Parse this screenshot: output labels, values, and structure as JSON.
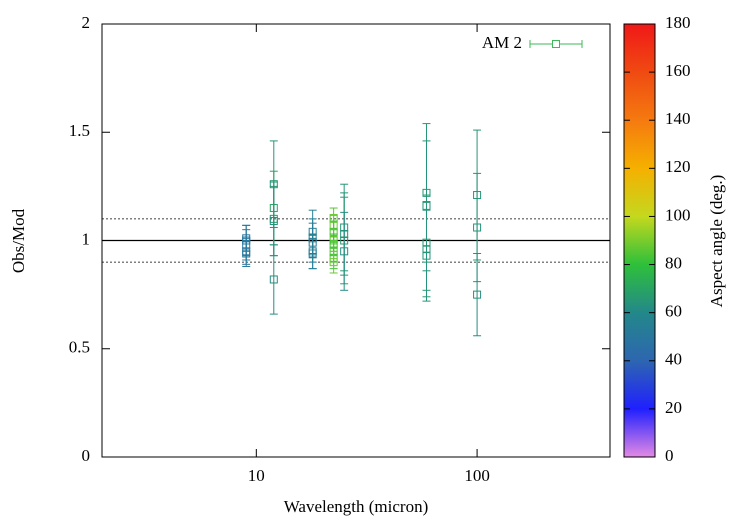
{
  "chart_data": {
    "type": "scatter",
    "xlabel": "Wavelength (micron)",
    "ylabel": "Obs/Mod",
    "xscale": "log",
    "xlim": [
      2,
      400
    ],
    "xticks": [
      10,
      100
    ],
    "ylim": [
      0,
      2
    ],
    "yticks": [
      0,
      0.5,
      1,
      1.5,
      2
    ],
    "legend": "top-right",
    "hlines": [
      {
        "value": 1,
        "style": "solid"
      },
      {
        "value": 1.1,
        "style": "dotted"
      },
      {
        "value": 0.9,
        "style": "dotted"
      }
    ],
    "colorbar": {
      "label": "Aspect angle (deg.)",
      "lim": [
        0,
        180
      ],
      "ticks": [
        0,
        20,
        40,
        60,
        80,
        100,
        120,
        140,
        160,
        180
      ],
      "colormap": [
        [
          0,
          "#e48ae4"
        ],
        [
          20,
          "#2020ff"
        ],
        [
          40,
          "#2d66b0"
        ],
        [
          60,
          "#23888a"
        ],
        [
          80,
          "#2ec03a"
        ],
        [
          100,
          "#c4d81e"
        ],
        [
          120,
          "#f5b000"
        ],
        [
          140,
          "#f57a10"
        ],
        [
          160,
          "#f04a12"
        ],
        [
          180,
          "#f01818"
        ]
      ]
    },
    "series": [
      {
        "name": "AM 2",
        "color": "#3fb85a",
        "x": [
          9,
          9,
          9,
          9,
          9,
          12,
          12,
          12,
          12,
          12,
          18,
          18,
          18,
          18,
          18,
          22.4,
          22.4,
          22.4,
          22.4,
          22.4,
          22.4,
          22.4,
          22.4,
          25,
          25,
          25,
          25,
          59,
          59,
          59,
          59,
          59,
          100,
          100,
          100
        ],
        "values": [
          1.0,
          0.98,
          0.95,
          0.94,
          1.01,
          1.26,
          1.15,
          1.1,
          1.09,
          0.82,
          1.04,
          1.01,
          0.99,
          0.95,
          0.94,
          1.1,
          1.07,
          1.04,
          1.0,
          0.98,
          0.95,
          0.92,
          0.9,
          1.06,
          1.03,
          1.0,
          0.95,
          1.22,
          1.16,
          0.99,
          0.96,
          0.93,
          1.21,
          1.06,
          0.75
        ],
        "errors": [
          0.07,
          0.07,
          0.06,
          0.06,
          0.06,
          0.2,
          0.17,
          0.17,
          0.16,
          0.16,
          0.1,
          0.09,
          0.09,
          0.08,
          0.07,
          0.05,
          0.05,
          0.05,
          0.05,
          0.05,
          0.05,
          0.05,
          0.05,
          0.2,
          0.19,
          0.2,
          0.18,
          0.32,
          0.3,
          0.22,
          0.22,
          0.21,
          0.3,
          0.25,
          0.19
        ],
        "angles": [
          50,
          50,
          48,
          52,
          50,
          65,
          70,
          66,
          64,
          62,
          55,
          55,
          52,
          55,
          54,
          85,
          88,
          84,
          86,
          82,
          85,
          83,
          88,
          65,
          64,
          66,
          62,
          65,
          64,
          66,
          65,
          64,
          65,
          64,
          63
        ]
      }
    ]
  }
}
